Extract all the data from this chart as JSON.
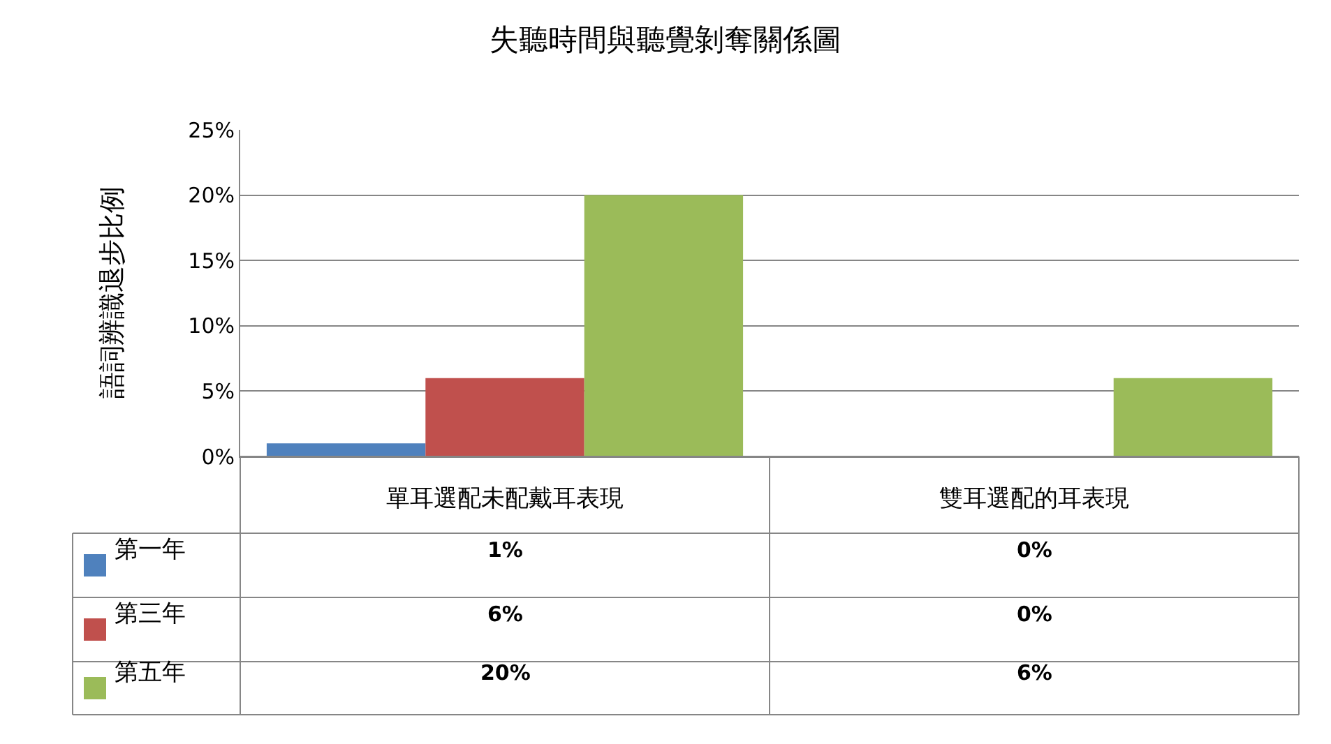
{
  "chart_data": {
    "type": "bar",
    "title": "失聽時間與聽覺剝奪關係圖",
    "ylabel": "語詞辨識退步比例",
    "categories": [
      "單耳選配未配戴耳表現",
      "雙耳選配的耳表現"
    ],
    "series": [
      {
        "name": "第一年",
        "color": "#4f81bd",
        "values": [
          1,
          0
        ],
        "value_labels": [
          "1%",
          "0%"
        ]
      },
      {
        "name": "第三年",
        "color": "#c0504d",
        "values": [
          6,
          0
        ],
        "value_labels": [
          "6%",
          "0%"
        ]
      },
      {
        "name": "第五年",
        "color": "#9bbb59",
        "values": [
          20,
          6
        ],
        "value_labels": [
          "20%",
          "6%"
        ]
      }
    ],
    "ylim": [
      0,
      25
    ],
    "yticks": [
      {
        "value": 0,
        "label": "0%"
      },
      {
        "value": 5,
        "label": "5%"
      },
      {
        "value": 10,
        "label": "10%"
      },
      {
        "value": 15,
        "label": "15%"
      },
      {
        "value": 20,
        "label": "20%"
      },
      {
        "value": 25,
        "label": "25%"
      }
    ],
    "grid": "y",
    "legend": "bottom left"
  }
}
